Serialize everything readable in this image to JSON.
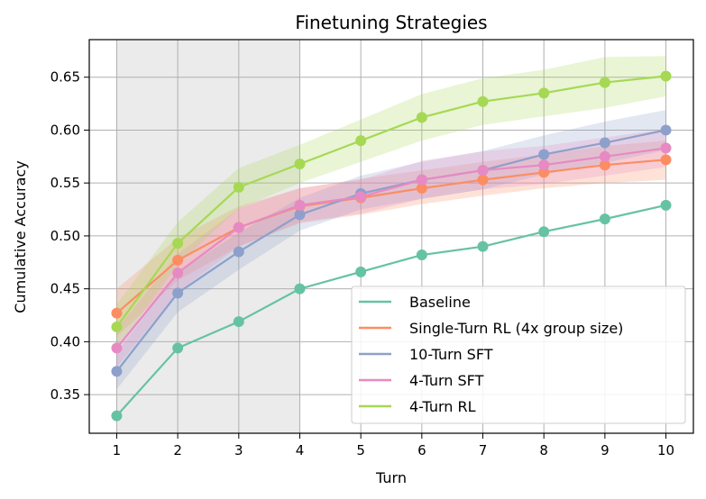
{
  "chart_data": {
    "type": "line",
    "title": "Finetuning Strategies",
    "xlabel": "Turn",
    "ylabel": "Cumulative Accuracy",
    "x": [
      1,
      2,
      3,
      4,
      5,
      6,
      7,
      8,
      9,
      10
    ],
    "xlim": [
      0.55,
      10.45
    ],
    "ylim": [
      0.3135,
      0.6855
    ],
    "xticks": [
      "1",
      "2",
      "3",
      "4",
      "5",
      "6",
      "7",
      "8",
      "9",
      "10"
    ],
    "yticks": [
      "0.35",
      "0.40",
      "0.45",
      "0.50",
      "0.55",
      "0.60",
      "0.65"
    ],
    "ytick_values": [
      0.35,
      0.4,
      0.45,
      0.5,
      0.55,
      0.6,
      0.65
    ],
    "grid": true,
    "shaded_region": {
      "x_start": 1,
      "x_end": 4,
      "color": "#ebebeb"
    },
    "legend_position": "lower right",
    "series": [
      {
        "name": "Baseline",
        "color": "#66c2a5",
        "values": [
          0.33,
          0.394,
          0.419,
          0.45,
          0.466,
          0.482,
          0.49,
          0.504,
          0.516,
          0.529
        ],
        "band_low": null,
        "band_high": null
      },
      {
        "name": "Single-Turn RL (4x group size)",
        "color": "#fc8d62",
        "values": [
          0.427,
          0.477,
          0.508,
          0.528,
          0.536,
          0.545,
          0.553,
          0.56,
          0.567,
          0.572
        ],
        "band_low": [
          0.405,
          0.458,
          0.49,
          0.512,
          0.52,
          0.53,
          0.538,
          0.545,
          0.55,
          0.553
        ],
        "band_high": [
          0.45,
          0.498,
          0.528,
          0.545,
          0.554,
          0.562,
          0.57,
          0.577,
          0.585,
          0.59
        ]
      },
      {
        "name": "10-Turn SFT",
        "color": "#8da0cb",
        "values": [
          0.372,
          0.446,
          0.485,
          0.52,
          0.54,
          0.553,
          0.562,
          0.577,
          0.588,
          0.6
        ],
        "band_low": [
          0.355,
          0.428,
          0.468,
          0.505,
          0.525,
          0.535,
          0.544,
          0.558,
          0.569,
          0.581
        ],
        "band_high": [
          0.39,
          0.466,
          0.503,
          0.536,
          0.557,
          0.57,
          0.58,
          0.595,
          0.608,
          0.619
        ]
      },
      {
        "name": "4-Turn SFT",
        "color": "#e78ac3",
        "values": [
          0.394,
          0.465,
          0.508,
          0.529,
          0.537,
          0.553,
          0.562,
          0.567,
          0.575,
          0.583
        ],
        "band_low": [
          0.376,
          0.447,
          0.49,
          0.513,
          0.521,
          0.535,
          0.544,
          0.549,
          0.557,
          0.565
        ],
        "band_high": [
          0.412,
          0.483,
          0.526,
          0.545,
          0.553,
          0.571,
          0.58,
          0.585,
          0.593,
          0.601
        ]
      },
      {
        "name": "4-Turn RL",
        "color": "#a6d854",
        "values": [
          0.414,
          0.493,
          0.546,
          0.568,
          0.59,
          0.612,
          0.627,
          0.635,
          0.645,
          0.651
        ],
        "band_low": [
          0.393,
          0.473,
          0.526,
          0.55,
          0.57,
          0.59,
          0.605,
          0.613,
          0.621,
          0.632
        ],
        "band_high": [
          0.435,
          0.513,
          0.564,
          0.586,
          0.61,
          0.634,
          0.649,
          0.657,
          0.669,
          0.67
        ]
      }
    ]
  }
}
